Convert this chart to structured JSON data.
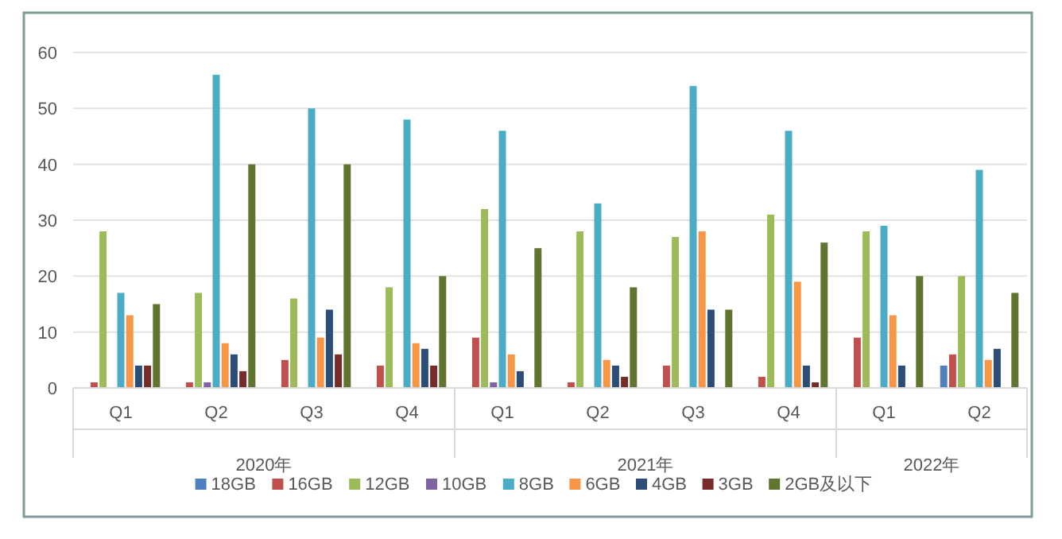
{
  "chart_data": {
    "type": "bar",
    "categories": [
      "Q1",
      "Q2",
      "Q3",
      "Q4",
      "Q1",
      "Q2",
      "Q3",
      "Q4",
      "Q1",
      "Q2"
    ],
    "annotations": [
      "2020年",
      "2021年",
      "2022年"
    ],
    "ylim": [
      0,
      60
    ],
    "yticks": [
      0,
      10,
      20,
      30,
      40,
      50,
      60
    ],
    "grid": "y",
    "legend": "bottom",
    "series": [
      {
        "name": "18GB",
        "color": "#4f81bd",
        "values": [
          null,
          null,
          null,
          null,
          null,
          null,
          null,
          null,
          null,
          4
        ]
      },
      {
        "name": "16GB",
        "color": "#c0504d",
        "values": [
          1,
          1,
          5,
          4,
          9,
          1,
          4,
          2,
          9,
          6
        ]
      },
      {
        "name": "12GB",
        "color": "#9bbb59",
        "values": [
          28,
          17,
          16,
          18,
          32,
          28,
          27,
          31,
          28,
          20
        ]
      },
      {
        "name": "10GB",
        "color": "#8064a2",
        "values": [
          null,
          1,
          null,
          null,
          1,
          null,
          null,
          null,
          null,
          null
        ]
      },
      {
        "name": "8GB",
        "color": "#4bacc6",
        "values": [
          17,
          56,
          50,
          48,
          46,
          33,
          54,
          46,
          29,
          39
        ]
      },
      {
        "name": "6GB",
        "color": "#f79646",
        "values": [
          13,
          8,
          9,
          8,
          6,
          5,
          28,
          19,
          13,
          5
        ]
      },
      {
        "name": "4GB",
        "color": "#2c4d75",
        "values": [
          4,
          6,
          14,
          7,
          3,
          4,
          14,
          4,
          4,
          7
        ]
      },
      {
        "name": "3GB",
        "color": "#772c2a",
        "values": [
          4,
          3,
          6,
          4,
          null,
          2,
          null,
          1,
          null,
          null
        ]
      },
      {
        "name": "2GB及以下",
        "color": "#5f7530",
        "values": [
          15,
          40,
          40,
          20,
          25,
          18,
          14,
          26,
          20,
          17
        ]
      }
    ]
  }
}
